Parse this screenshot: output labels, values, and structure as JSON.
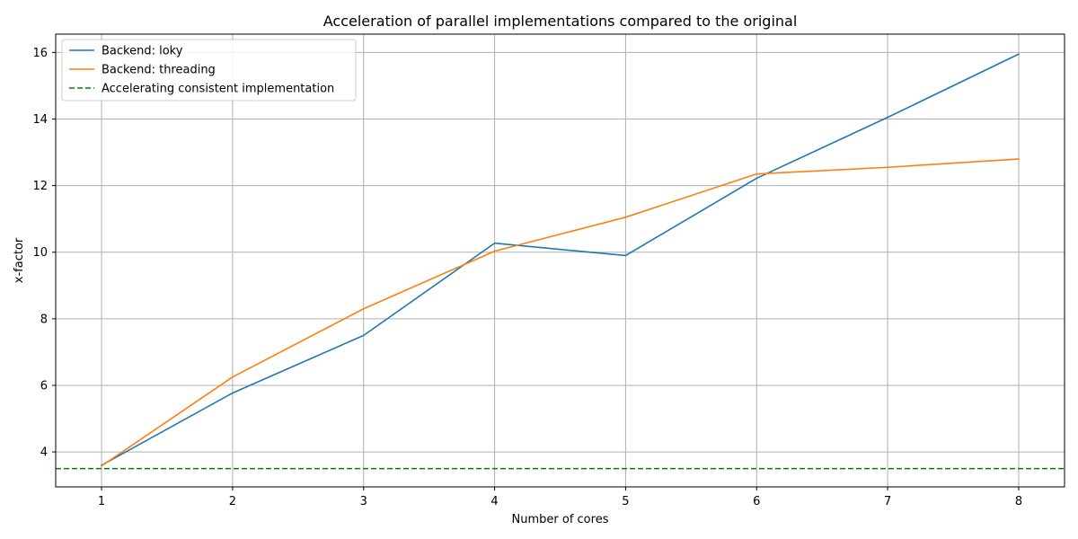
{
  "chart_data": {
    "type": "line",
    "title": "Acceleration of parallel implementations compared to the original",
    "xlabel": "Number of cores",
    "ylabel": "x-factor",
    "x": [
      1,
      2,
      3,
      4,
      5,
      6,
      7,
      8
    ],
    "xlim": [
      0.65,
      8.35
    ],
    "ylim": [
      2.95,
      16.55
    ],
    "xticks": [
      1,
      2,
      3,
      4,
      5,
      6,
      7,
      8
    ],
    "yticks": [
      4,
      6,
      8,
      10,
      12,
      14,
      16
    ],
    "grid": true,
    "legend_position": "upper-left",
    "series": [
      {
        "name": "Backend: loky",
        "color": "#1f77b4",
        "style": "solid",
        "values": [
          3.6,
          5.77,
          7.5,
          10.27,
          9.9,
          12.22,
          14.05,
          15.95
        ]
      },
      {
        "name": "Backend: threading",
        "color": "#ff7f0e",
        "style": "solid",
        "values": [
          3.58,
          6.25,
          8.3,
          10.03,
          11.05,
          12.35,
          12.55,
          12.8
        ]
      }
    ],
    "reference_lines": [
      {
        "name": "Accelerating consistent implementation",
        "color": "#008000",
        "style": "dashed",
        "y": 3.5
      }
    ]
  }
}
